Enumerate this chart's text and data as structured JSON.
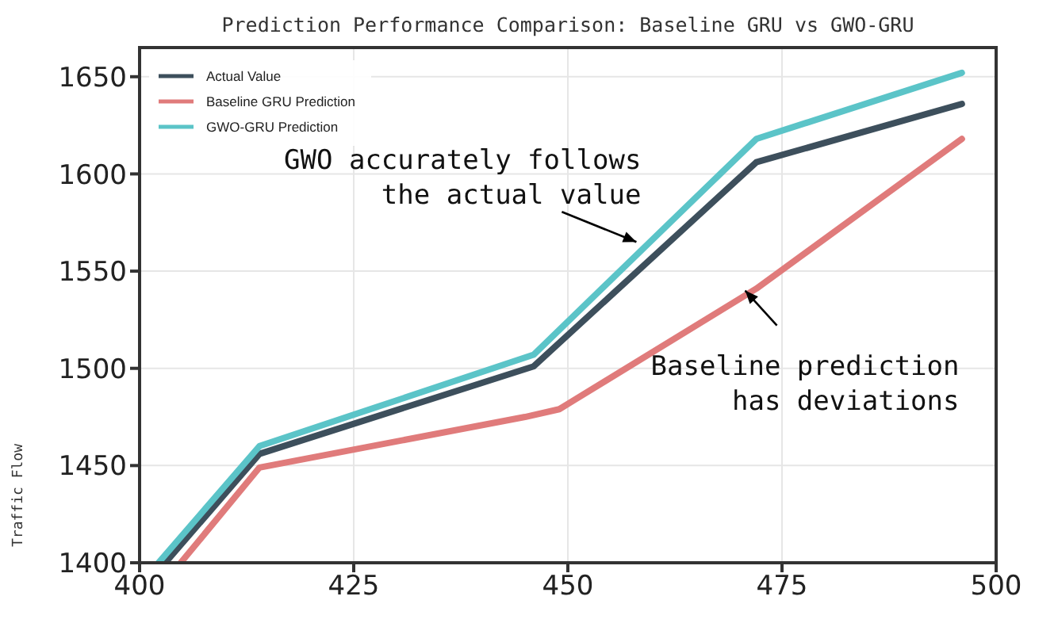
{
  "chart_data": {
    "type": "line",
    "title": "Prediction Performance Comparison: Baseline GRU vs GWO-GRU",
    "ylabel": "Traffic Flow",
    "xlim": [
      400,
      500
    ],
    "xticks": [
      400,
      425,
      450,
      475,
      500
    ],
    "ylim": [
      1400,
      1665
    ],
    "yticks": [
      1400,
      1450,
      1500,
      1550,
      1600,
      1650
    ],
    "grid": true,
    "legend": "top left",
    "marker": "none",
    "line_style": "solid",
    "series": [
      {
        "name": "Actual Value",
        "color": "#3d4f5c",
        "x": [
          403,
          414,
          446,
          472,
          496
        ],
        "values": [
          1400,
          1456,
          1501,
          1606,
          1636
        ]
      },
      {
        "name": "Baseline GRU Prediction",
        "color": "#e07b7b",
        "x": [
          404.8,
          414,
          445,
          449,
          472,
          496
        ],
        "values": [
          1400,
          1449,
          1475,
          1479,
          1541,
          1618
        ]
      },
      {
        "name": "GWO-GRU Prediction",
        "color": "#5bc4c8",
        "x": [
          402.2,
          414,
          446,
          472,
          496
        ],
        "values": [
          1400,
          1460,
          1507,
          1618,
          1652
        ]
      }
    ],
    "annotations": [
      {
        "text": "GWO accurately follows\nthe actual value",
        "x": 458,
        "y": 1565
      },
      {
        "text": "Baseline prediction\nhas deviations",
        "x": 470.7,
        "y": 1540
      }
    ]
  }
}
